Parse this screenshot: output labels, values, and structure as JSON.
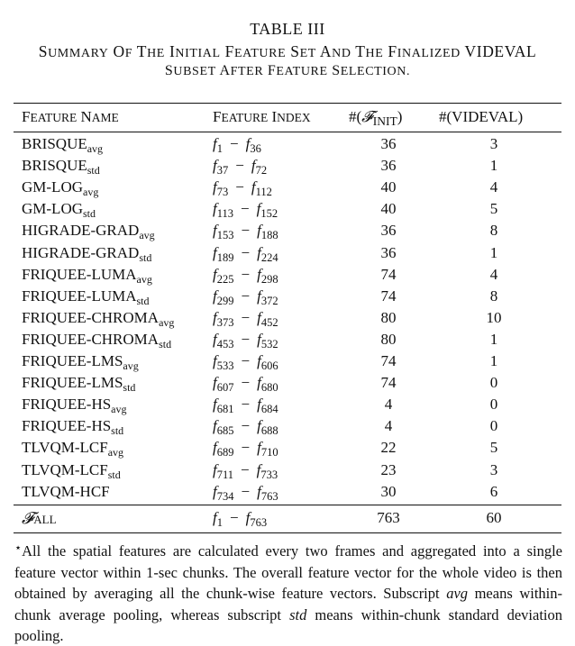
{
  "table_number": "TABLE III",
  "caption": {
    "line1_pre": "Summary of the initial feature set and the finalized",
    "line1_brand": "VIDEVAL",
    "line2": "subset after feature selection."
  },
  "headers": {
    "name": "Feature Name",
    "index": "Feature Index",
    "init_prefix": "#(",
    "init_symbol": "𝓕",
    "init_sub": "INIT",
    "init_suffix": ")",
    "videval": "#(VIDEVAL)"
  },
  "rows": [
    {
      "base": "BRISQUE",
      "sub": "avg",
      "start": "1",
      "end": "36",
      "init": "36",
      "videval": "3"
    },
    {
      "base": "BRISQUE",
      "sub": "std",
      "start": "37",
      "end": "72",
      "init": "36",
      "videval": "1"
    },
    {
      "base": "GM-LOG",
      "sub": "avg",
      "start": "73",
      "end": "112",
      "init": "40",
      "videval": "4"
    },
    {
      "base": "GM-LOG",
      "sub": "std",
      "start": "113",
      "end": "152",
      "init": "40",
      "videval": "5"
    },
    {
      "base": "HIGRADE-GRAD",
      "sub": "avg",
      "start": "153",
      "end": "188",
      "init": "36",
      "videval": "8"
    },
    {
      "base": "HIGRADE-GRAD",
      "sub": "std",
      "start": "189",
      "end": "224",
      "init": "36",
      "videval": "1"
    },
    {
      "base": "FRIQUEE-LUMA",
      "sub": "avg",
      "start": "225",
      "end": "298",
      "init": "74",
      "videval": "4"
    },
    {
      "base": "FRIQUEE-LUMA",
      "sub": "std",
      "start": "299",
      "end": "372",
      "init": "74",
      "videval": "8"
    },
    {
      "base": "FRIQUEE-CHROMA",
      "sub": "avg",
      "start": "373",
      "end": "452",
      "init": "80",
      "videval": "10"
    },
    {
      "base": "FRIQUEE-CHROMA",
      "sub": "std",
      "start": "453",
      "end": "532",
      "init": "80",
      "videval": "1"
    },
    {
      "base": "FRIQUEE-LMS",
      "sub": "avg",
      "start": "533",
      "end": "606",
      "init": "74",
      "videval": "1"
    },
    {
      "base": "FRIQUEE-LMS",
      "sub": "std",
      "start": "607",
      "end": "680",
      "init": "74",
      "videval": "0"
    },
    {
      "base": "FRIQUEE-HS",
      "sub": "avg",
      "start": "681",
      "end": "684",
      "init": "4",
      "videval": "0"
    },
    {
      "base": "FRIQUEE-HS",
      "sub": "std",
      "start": "685",
      "end": "688",
      "init": "4",
      "videval": "0"
    },
    {
      "base": "TLVQM-LCF",
      "sub": "avg",
      "start": "689",
      "end": "710",
      "init": "22",
      "videval": "5"
    },
    {
      "base": "TLVQM-LCF",
      "sub": "std",
      "start": "711",
      "end": "733",
      "init": "23",
      "videval": "3"
    },
    {
      "base": "TLVQM-HCF",
      "sub": "",
      "start": "734",
      "end": "763",
      "init": "30",
      "videval": "6"
    }
  ],
  "summary": {
    "symbol": "𝓕",
    "sub": "ALL",
    "start": "1",
    "end": "763",
    "init": "763",
    "videval": "60"
  },
  "footnote": {
    "star": "⋆",
    "text1": "All the spatial features are calculated every two frames and aggregated into a single feature vector within 1-sec chunks. The overall feature vector for the whole video is then obtained by averaging all the chunk-wise feature vectors. Subscript ",
    "avg": "avg",
    "text2": " means within-chunk average pooling, whereas subscript ",
    "std": "std",
    "text3": " means within-chunk standard deviation pooling."
  }
}
